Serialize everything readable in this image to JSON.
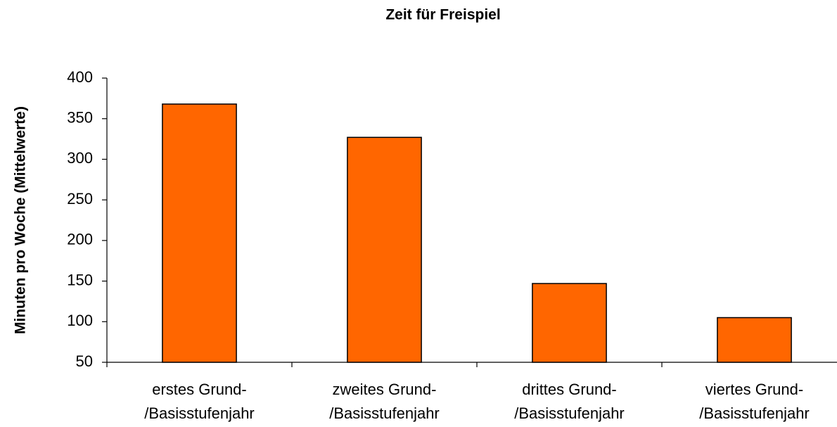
{
  "chart_data": {
    "type": "bar",
    "title": "Zeit für Freispiel",
    "y_label": "Minuten pro Woche (Mittelwerte)",
    "categories": [
      [
        "erstes Grund-",
        "/Basisstufenjahr"
      ],
      [
        "zweites Grund-",
        "/Basisstufenjahr"
      ],
      [
        "drittes Grund-",
        "/Basisstufenjahr"
      ],
      [
        "viertes Grund-",
        "/Basisstufenjahr"
      ]
    ],
    "values": [
      368,
      327,
      147,
      105
    ],
    "color": "#ff6600",
    "ylim": [
      50,
      400
    ],
    "yticks": [
      50,
      100,
      150,
      200,
      250,
      300,
      350,
      400
    ],
    "grid": false
  }
}
